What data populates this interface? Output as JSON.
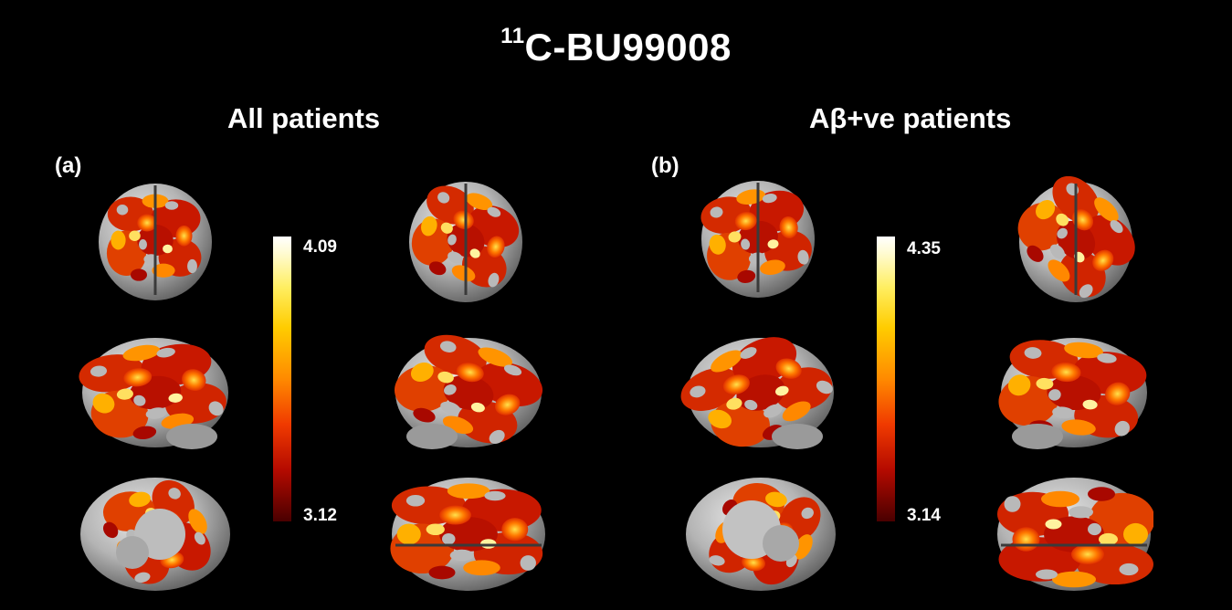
{
  "figure": {
    "title_superscript": "11",
    "title_main": "C-BU99008"
  },
  "panels": [
    {
      "label": "(a)",
      "title": "All patients",
      "colorbar": {
        "max": "4.09",
        "min": "3.12"
      }
    },
    {
      "label": "(b)",
      "title": "Aβ+ve patients",
      "colorbar": {
        "max": "4.35",
        "min": "3.14"
      }
    }
  ],
  "colors": {
    "background": "#000000",
    "brain_surface": "#b9b9b9",
    "activation_low": "#b40a00",
    "activation_mid": "#ff6a00",
    "activation_high": "#ffffff"
  }
}
